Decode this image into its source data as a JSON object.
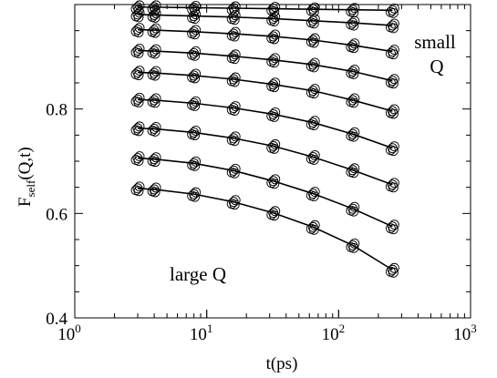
{
  "chart_data": {
    "type": "scatter",
    "title": "",
    "xlabel": "t(ps)",
    "ylabel": {
      "main": "F",
      "sub": "self",
      "rest": "(Q,t)"
    },
    "xscale": "log",
    "xlim": [
      1,
      1000
    ],
    "ylim": [
      0.4,
      1.0
    ],
    "x_ticks": [
      {
        "value": 1,
        "base": "10",
        "exp": "0"
      },
      {
        "value": 10,
        "base": "10",
        "exp": "1"
      },
      {
        "value": 100,
        "base": "10",
        "exp": "2"
      },
      {
        "value": 1000,
        "base": "10",
        "exp": "3"
      }
    ],
    "y_ticks": [
      {
        "value": 0.4,
        "label": "0.4"
      },
      {
        "value": 0.6,
        "label": "0.6"
      },
      {
        "value": 0.8,
        "label": "0.8"
      }
    ],
    "annotations": {
      "small_q_line1": "small",
      "small_q_line2": "Q",
      "large_q": "large Q"
    },
    "x": [
      3,
      4,
      8,
      16,
      32,
      64,
      128,
      256
    ],
    "series": [
      {
        "values": [
          0.995,
          0.995,
          0.994,
          0.993,
          0.992,
          0.991,
          0.99,
          0.989
        ]
      },
      {
        "values": [
          0.981,
          0.98,
          0.978,
          0.976,
          0.973,
          0.969,
          0.965,
          0.96
        ]
      },
      {
        "values": [
          0.952,
          0.951,
          0.948,
          0.944,
          0.939,
          0.932,
          0.922,
          0.91
        ]
      },
      {
        "values": [
          0.912,
          0.911,
          0.907,
          0.901,
          0.894,
          0.885,
          0.872,
          0.854
        ]
      },
      {
        "values": [
          0.87,
          0.869,
          0.864,
          0.857,
          0.847,
          0.835,
          0.817,
          0.796
        ]
      },
      {
        "values": [
          0.818,
          0.817,
          0.811,
          0.802,
          0.79,
          0.774,
          0.752,
          0.725
        ]
      },
      {
        "values": [
          0.763,
          0.762,
          0.755,
          0.744,
          0.729,
          0.708,
          0.683,
          0.655
        ]
      },
      {
        "values": [
          0.706,
          0.704,
          0.696,
          0.682,
          0.662,
          0.638,
          0.609,
          0.575
        ]
      },
      {
        "values": [
          0.648,
          0.646,
          0.637,
          0.622,
          0.601,
          0.574,
          0.539,
          0.492
        ]
      }
    ],
    "marker": "open-circle",
    "fit_line": true,
    "grid": false,
    "colors": {
      "line": "#000000",
      "marker": "#000000",
      "background": "#ffffff"
    }
  }
}
